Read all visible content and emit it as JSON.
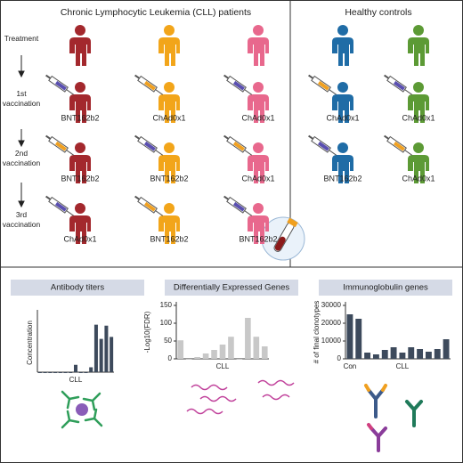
{
  "cll_title": "Chronic Lymphocytic Leukemia (CLL) patients",
  "healthy_title": "Healthy controls",
  "stages": [
    "Treatment",
    "1st vaccination",
    "2nd vaccination",
    "3rd vaccination"
  ],
  "cll_vaccines": [
    [
      "BNT162b2",
      "ChAd0x1",
      "ChAd0x1"
    ],
    [
      "BNT162b2",
      "BNT162b2",
      "ChAd0x1"
    ],
    [
      "ChAd0x1",
      "BNT162b2",
      "BNT162b2"
    ]
  ],
  "healthy_vaccines": [
    [
      "ChAd0x1",
      "ChAd0x1"
    ],
    [
      "BNT162b2",
      "ChAd0x1"
    ]
  ],
  "panels": [
    {
      "type": "bar",
      "title": "Antibody titers",
      "y_label": "Concentration",
      "categories": [
        null,
        null,
        null,
        null,
        null,
        null,
        null,
        "CLL",
        null,
        null,
        null,
        null,
        null,
        null,
        null
      ],
      "values": [
        0,
        0,
        0,
        0,
        0,
        0,
        0,
        1.5,
        0,
        0,
        1,
        9.7,
        6.8,
        9.5,
        7.2
      ],
      "ylim": [
        0,
        12
      ],
      "yticks": [],
      "color": "#3d4a5c"
    },
    {
      "type": "bar",
      "title": "Differentially Expressed Genes",
      "y_label": "-Log10(FDR)",
      "categories": [
        null,
        null,
        null,
        null,
        null,
        "CLL",
        null,
        null,
        null,
        null,
        null
      ],
      "values": [
        52,
        0,
        5,
        15,
        25,
        40,
        62,
        0,
        115,
        62,
        35
      ],
      "ylim": [
        0,
        150
      ],
      "yticks": [
        0,
        50,
        100,
        150
      ],
      "color": "#c8c8c8"
    },
    {
      "type": "bar",
      "title": "Immunoglobulin genes",
      "y_label": "# of final clonotypes",
      "categories": [
        "Con",
        null,
        null,
        null,
        null,
        null,
        "CLL",
        null,
        null,
        null,
        null,
        null
      ],
      "values": [
        25000,
        22500,
        3500,
        2500,
        5000,
        6500,
        3500,
        6500,
        5500,
        4000,
        5500,
        11000
      ],
      "ylim": [
        0,
        30000
      ],
      "yticks": [
        0,
        10000,
        20000,
        30000
      ],
      "color": "#3d4a5c"
    }
  ]
}
